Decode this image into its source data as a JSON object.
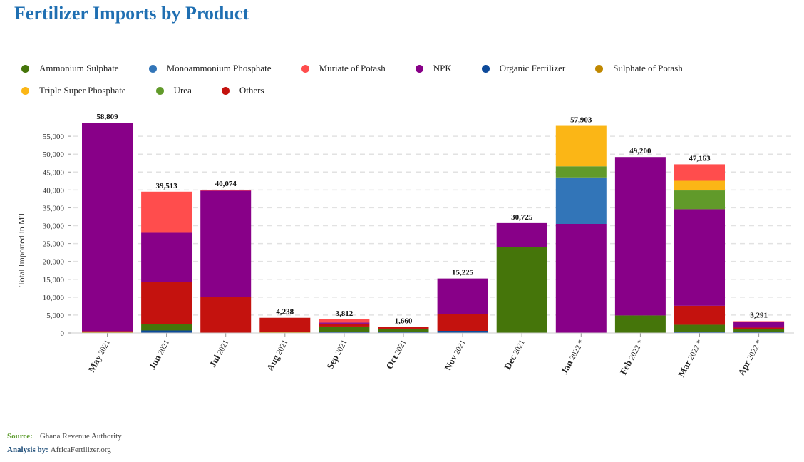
{
  "title": "Fertilizer Imports by Product",
  "footer": {
    "source_label": "Source:",
    "source_value": "Ghana Revenue Authority",
    "analysis_label": "Analysis by:",
    "analysis_value": "AfricaFertilizer.org"
  },
  "chart_data": {
    "type": "bar",
    "stacked": true,
    "ylabel": "Total Imported in MT",
    "ylim": [
      0,
      58809
    ],
    "yticks": [
      0,
      5000,
      10000,
      15000,
      20000,
      25000,
      30000,
      35000,
      40000,
      45000,
      50000,
      55000
    ],
    "ytick_labels": [
      "0",
      "5,000",
      "10,000",
      "15,000",
      "20,000",
      "25,000",
      "30,000",
      "35,000",
      "40,000",
      "45,000",
      "50,000",
      "55,000"
    ],
    "grid": "horizontal dashed",
    "legend_position": "top",
    "categories": [
      {
        "month": "May",
        "year": "2021"
      },
      {
        "month": "Jun",
        "year": "2021"
      },
      {
        "month": "Jul",
        "year": "2021"
      },
      {
        "month": "Aug",
        "year": "2021"
      },
      {
        "month": "Sep",
        "year": "2021"
      },
      {
        "month": "Oct",
        "year": "2021"
      },
      {
        "month": "Nov",
        "year": "2021"
      },
      {
        "month": "Dec",
        "year": "2021"
      },
      {
        "month": "Jan",
        "year": "2022 *"
      },
      {
        "month": "Feb",
        "year": "2022 *"
      },
      {
        "month": "Mar",
        "year": "2022 *"
      },
      {
        "month": "Apr",
        "year": "2022 *"
      }
    ],
    "totals": [
      "58,809",
      "39,513",
      "40,074",
      "4,238",
      "3,812",
      "1,660",
      "15,225",
      "30,725",
      "57,903",
      "49,200",
      "47,163",
      "3,291"
    ],
    "series": [
      {
        "name": "Ammonium Sulphate",
        "color": "#45750a",
        "values": [
          50,
          1800,
          0,
          0,
          1500,
          900,
          0,
          24100,
          0,
          4900,
          2000,
          700
        ]
      },
      {
        "name": "Monoammonium Phosphate",
        "color": "#3275b8",
        "values": [
          0,
          0,
          0,
          0,
          0,
          0,
          0,
          0,
          13000,
          0,
          0,
          0
        ]
      },
      {
        "name": "Muriate of Potash",
        "color": "#ff4d4d",
        "values": [
          0,
          11500,
          300,
          0,
          900,
          0,
          0,
          0,
          0,
          0,
          4600,
          300
        ]
      },
      {
        "name": "NPK",
        "color": "#880088",
        "values": [
          58300,
          13800,
          29700,
          0,
          300,
          0,
          10000,
          6625,
          30500,
          44300,
          27000,
          1500
        ]
      },
      {
        "name": "Organic Fertilizer",
        "color": "#0d4a9a",
        "values": [
          0,
          700,
          0,
          0,
          300,
          300,
          600,
          0,
          0,
          0,
          300,
          300
        ]
      },
      {
        "name": "Sulphate of Potash",
        "color": "#c08800",
        "values": [
          400,
          0,
          0,
          200,
          0,
          0,
          0,
          0,
          0,
          0,
          0,
          0
        ]
      },
      {
        "name": "Triple Super Phosphate",
        "color": "#fbb616",
        "values": [
          0,
          0,
          0,
          0,
          0,
          0,
          0,
          0,
          11303,
          0,
          2700,
          0
        ]
      },
      {
        "name": "Urea",
        "color": "#619a2a",
        "values": [
          0,
          0,
          0,
          0,
          0,
          0,
          0,
          0,
          3100,
          0,
          5263,
          0
        ]
      },
      {
        "name": "Others",
        "color": "#c4120e",
        "values": [
          59,
          11713,
          10074,
          4038,
          812,
          460,
          4625,
          0,
          0,
          0,
          5300,
          491
        ]
      }
    ],
    "stack_order": [
      "Organic Fertilizer",
      "Sulphate of Potash",
      "Ammonium Sulphate",
      "Others",
      "NPK",
      "Monoammonium Phosphate",
      "Urea",
      "Triple Super Phosphate",
      "Muriate of Potash"
    ]
  }
}
